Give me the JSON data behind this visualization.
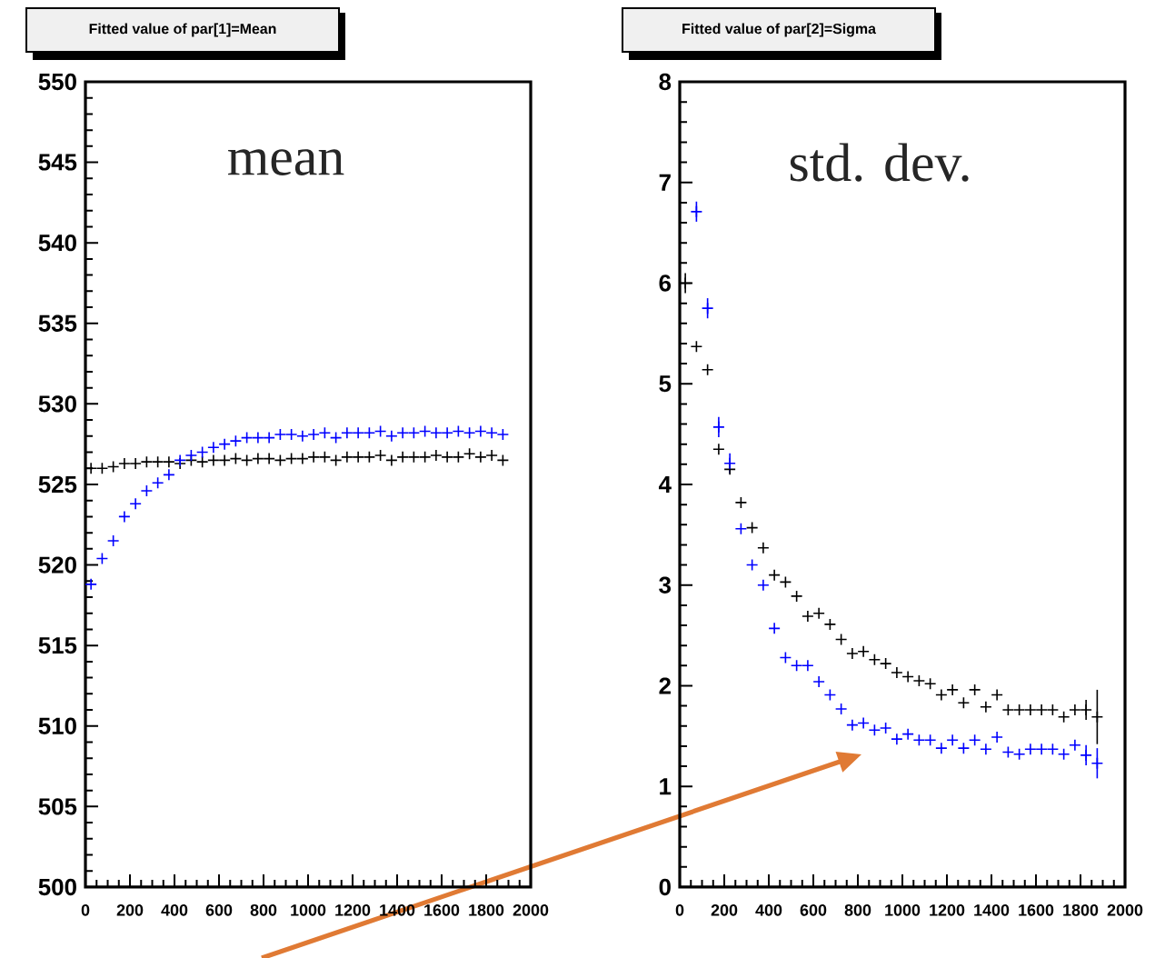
{
  "chart_data": [
    {
      "type": "scatter",
      "title": "Fitted value of par[1]=Mean",
      "annotations": [
        "mean"
      ],
      "marker": "cross",
      "x": [
        25,
        75,
        125,
        175,
        225,
        275,
        325,
        375,
        425,
        475,
        525,
        575,
        625,
        675,
        725,
        775,
        825,
        875,
        925,
        975,
        1025,
        1075,
        1125,
        1175,
        1225,
        1275,
        1325,
        1375,
        1425,
        1475,
        1525,
        1575,
        1625,
        1675,
        1725,
        1775,
        1825,
        1875
      ],
      "series": [
        {
          "color": "#000000",
          "values": [
            526.0,
            526.0,
            526.1,
            526.3,
            526.3,
            526.4,
            526.4,
            526.4,
            526.3,
            526.5,
            526.4,
            526.5,
            526.5,
            526.6,
            526.5,
            526.6,
            526.6,
            526.5,
            526.6,
            526.6,
            526.7,
            526.7,
            526.5,
            526.7,
            526.7,
            526.7,
            526.8,
            526.5,
            526.7,
            526.7,
            526.7,
            526.8,
            526.7,
            526.7,
            526.9,
            526.7,
            526.8,
            526.5
          ]
        },
        {
          "color": "#0000ff",
          "values": [
            518.8,
            520.4,
            521.5,
            523.0,
            523.8,
            524.6,
            525.1,
            525.6,
            526.5,
            526.8,
            527.0,
            527.3,
            527.5,
            527.7,
            527.9,
            527.9,
            527.9,
            528.1,
            528.1,
            528.0,
            528.1,
            528.2,
            527.9,
            528.2,
            528.2,
            528.2,
            528.3,
            528.0,
            528.2,
            528.2,
            528.3,
            528.2,
            528.2,
            528.3,
            528.2,
            528.3,
            528.2,
            528.1
          ]
        }
      ],
      "xlim": [
        0,
        2000
      ],
      "ylim": [
        500,
        550
      ],
      "xticks": [
        0,
        200,
        400,
        600,
        800,
        1000,
        1200,
        1400,
        1600,
        1800,
        2000
      ],
      "yticks": [
        500,
        505,
        510,
        515,
        520,
        525,
        530,
        535,
        540,
        545,
        550
      ]
    },
    {
      "type": "scatter",
      "title": "Fitted value of par[2]=Sigma",
      "annotations": [
        "std. dev."
      ],
      "marker": "cross",
      "x": [
        25,
        75,
        125,
        175,
        225,
        275,
        325,
        375,
        425,
        475,
        525,
        575,
        625,
        675,
        725,
        775,
        825,
        875,
        925,
        975,
        1025,
        1075,
        1125,
        1175,
        1225,
        1275,
        1325,
        1375,
        1425,
        1475,
        1525,
        1575,
        1625,
        1675,
        1725,
        1775,
        1825,
        1875
      ],
      "series": [
        {
          "color": "#000000",
          "values": [
            6.0,
            5.37,
            5.14,
            4.35,
            4.15,
            3.82,
            3.57,
            3.37,
            3.1,
            3.03,
            2.89,
            2.69,
            2.72,
            2.61,
            2.46,
            2.32,
            2.34,
            2.26,
            2.22,
            2.13,
            2.09,
            2.05,
            2.02,
            1.91,
            1.96,
            1.83,
            1.96,
            1.79,
            1.91,
            1.76,
            1.76,
            1.76,
            1.76,
            1.76,
            1.69,
            1.76,
            1.76,
            1.69
          ],
          "errors": [
            0.1,
            null,
            null,
            null,
            null,
            null,
            null,
            null,
            null,
            null,
            null,
            null,
            null,
            null,
            null,
            null,
            null,
            null,
            null,
            null,
            null,
            null,
            null,
            null,
            null,
            null,
            null,
            null,
            null,
            null,
            null,
            null,
            null,
            null,
            null,
            null,
            0.1,
            0.27
          ]
        },
        {
          "color": "#0000ff",
          "values": [
            null,
            6.71,
            5.75,
            4.57,
            4.21,
            3.56,
            3.2,
            3.0,
            2.57,
            2.28,
            2.2,
            2.2,
            2.04,
            1.91,
            1.77,
            1.61,
            1.63,
            1.56,
            1.58,
            1.47,
            1.52,
            1.46,
            1.46,
            1.38,
            1.46,
            1.38,
            1.46,
            1.37,
            1.49,
            1.34,
            1.32,
            1.37,
            1.37,
            1.37,
            1.32,
            1.41,
            1.31,
            1.23
          ],
          "errors": [
            null,
            0.1,
            0.1,
            0.1,
            0.1,
            null,
            null,
            null,
            null,
            null,
            null,
            null,
            null,
            null,
            null,
            null,
            null,
            null,
            null,
            null,
            null,
            null,
            null,
            null,
            null,
            null,
            null,
            null,
            null,
            null,
            null,
            null,
            null,
            null,
            null,
            null,
            0.1,
            0.15
          ]
        }
      ],
      "xlim": [
        0,
        2000
      ],
      "ylim": [
        0,
        8
      ],
      "xticks": [
        0,
        200,
        400,
        600,
        800,
        1000,
        1200,
        1400,
        1600,
        1800,
        2000
      ],
      "yticks": [
        0,
        1,
        2,
        3,
        4,
        5,
        6,
        7,
        8
      ]
    }
  ]
}
